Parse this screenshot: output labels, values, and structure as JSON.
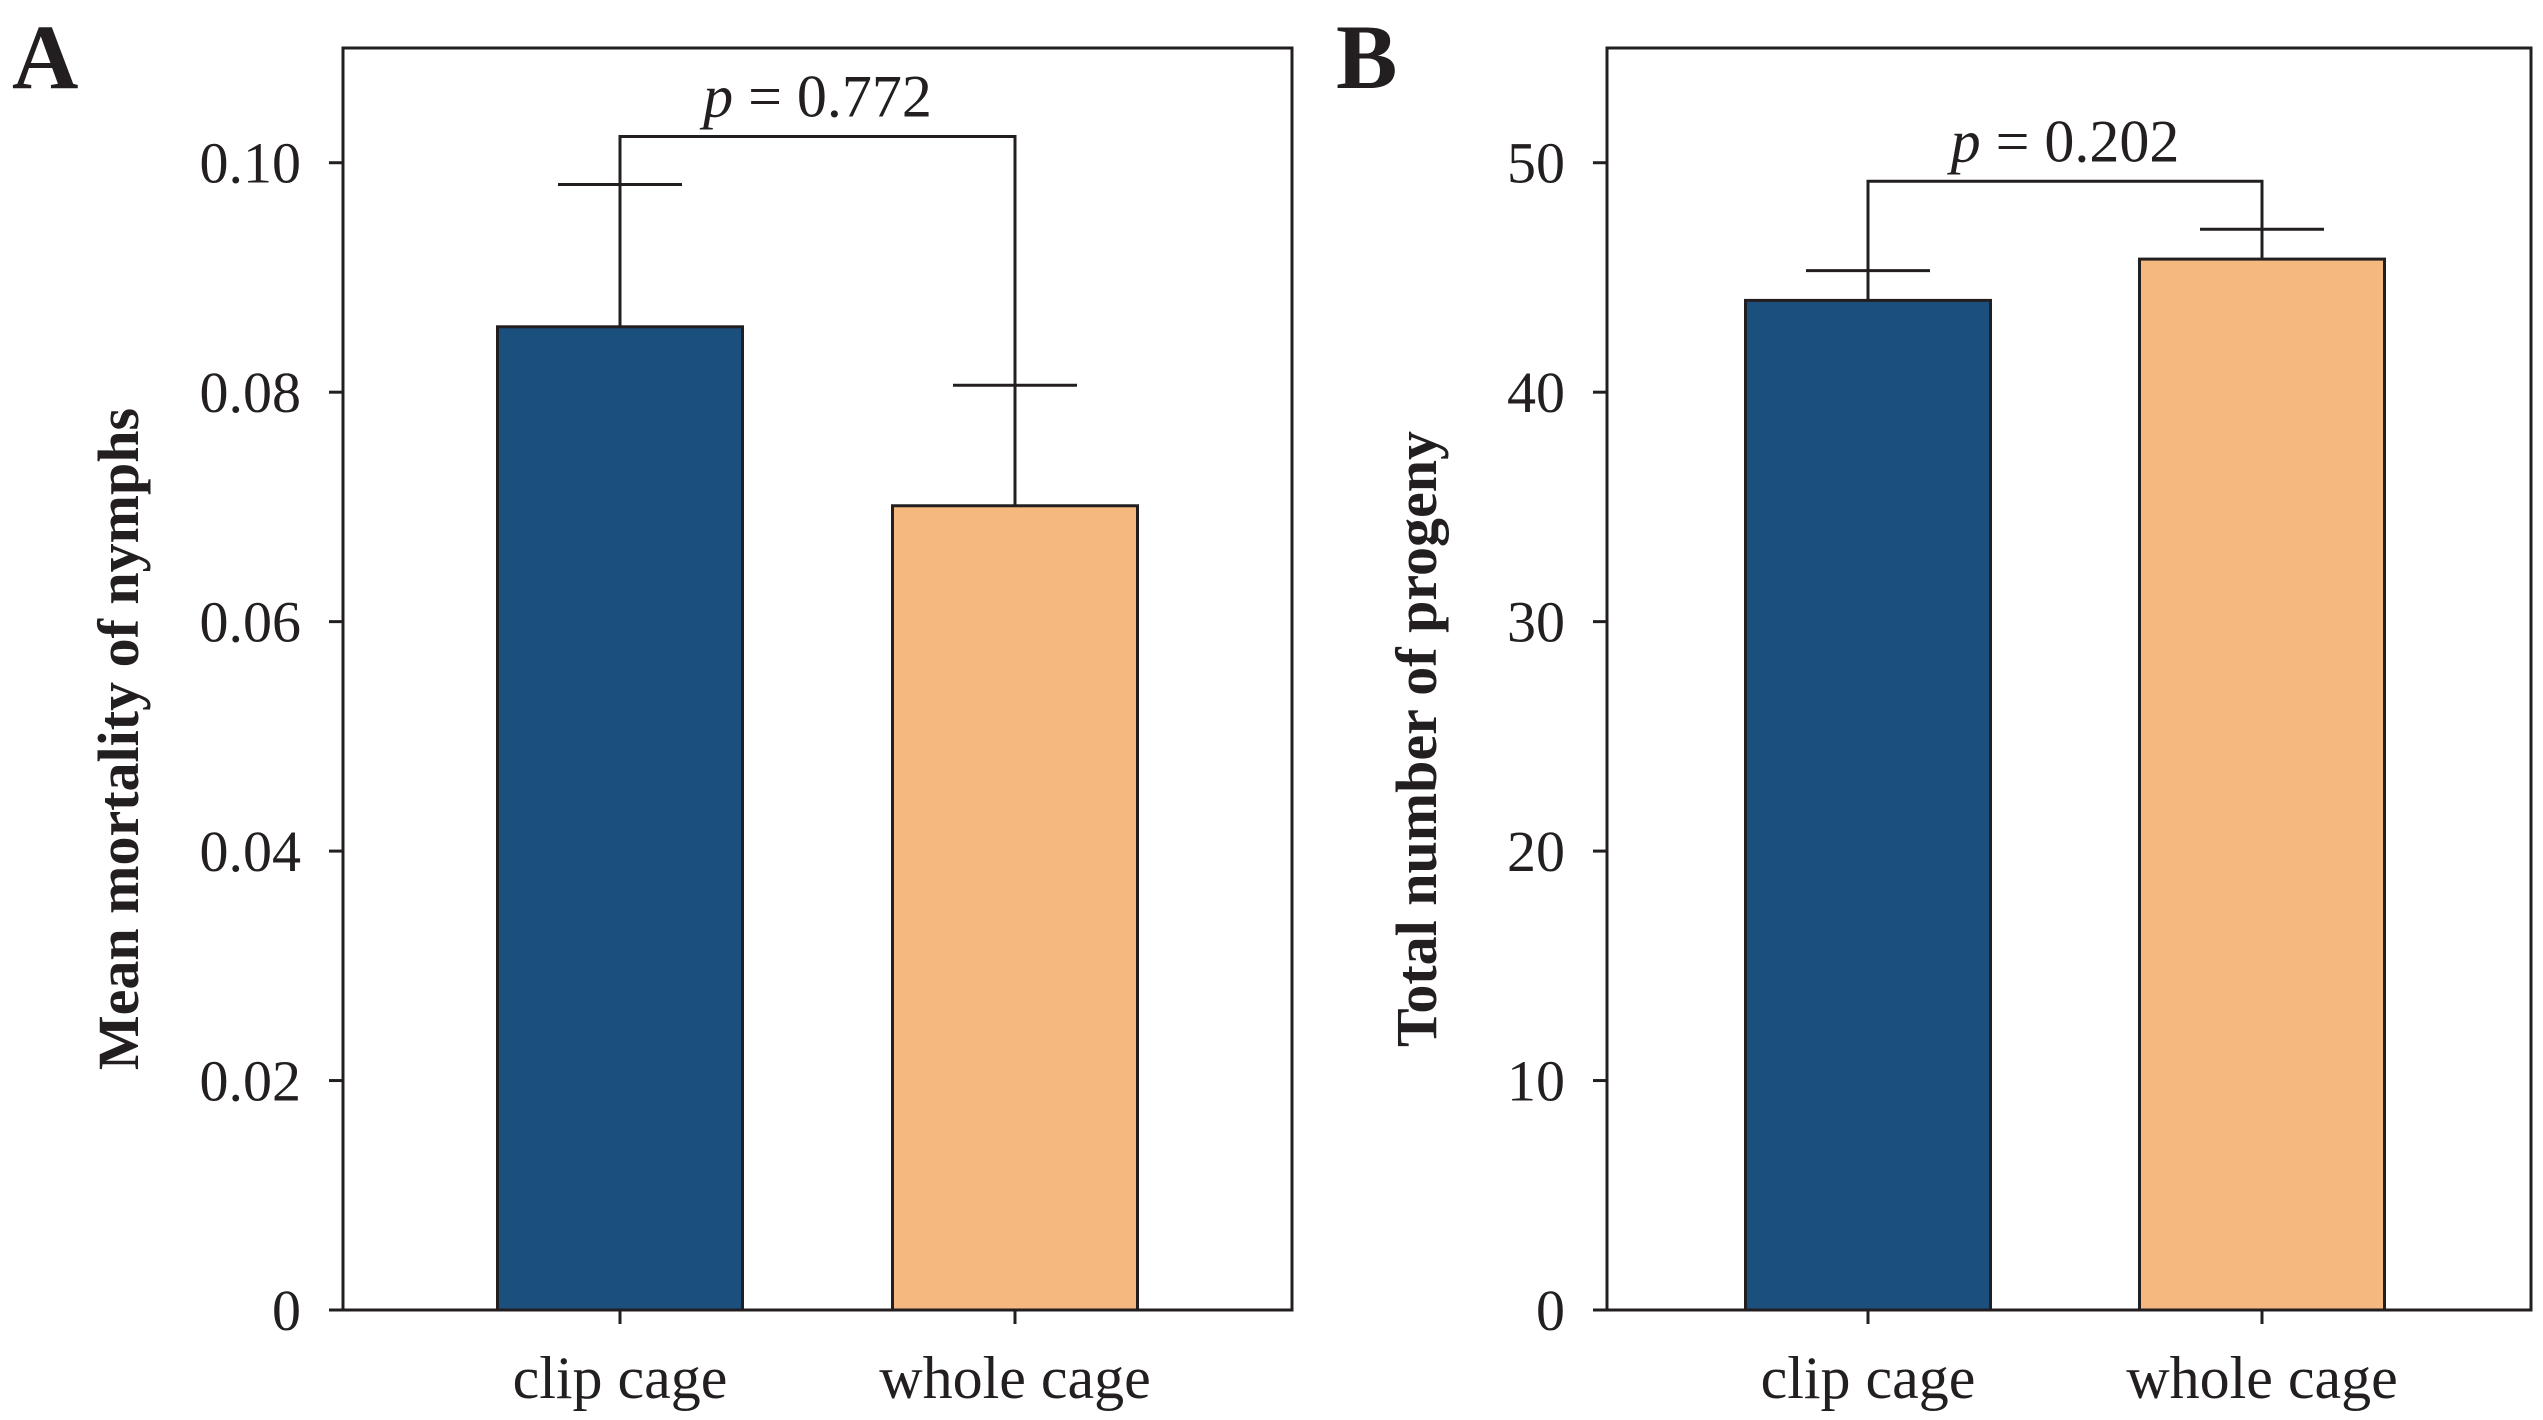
{
  "chart_data": [
    {
      "type": "bar",
      "panel": "A",
      "ylabel": "Mean mortality of nymphs",
      "categories": [
        "clip cage",
        "whole cage"
      ],
      "values": [
        0.0857,
        0.0701
      ],
      "errors": [
        0.0124,
        0.0105
      ],
      "colors": [
        "#1b4f7e",
        "#f5b97f"
      ],
      "ylim": [
        0,
        0.11
      ],
      "yticks": [
        0,
        0.02,
        0.04,
        0.06,
        0.08,
        0.1
      ],
      "ytick_labels": [
        "0",
        "0.02",
        "0.04",
        "0.06",
        "0.08",
        "0.10"
      ],
      "annotation": {
        "p": "p",
        "rest": " = 0.772"
      },
      "grid": false
    },
    {
      "type": "bar",
      "panel": "B",
      "ylabel": "Total number of progeny",
      "categories": [
        "clip cage",
        "whole cage"
      ],
      "values": [
        44.0,
        45.8
      ],
      "errors": [
        1.3,
        1.3
      ],
      "colors": [
        "#1b4f7e",
        "#f5b97f"
      ],
      "ylim": [
        0,
        55
      ],
      "yticks": [
        0,
        10,
        20,
        30,
        40,
        50
      ],
      "ytick_labels": [
        "0",
        "10",
        "20",
        "30",
        "40",
        "50"
      ],
      "annotation": {
        "p": "p",
        "rest": " = 0.202"
      },
      "grid": false
    }
  ]
}
